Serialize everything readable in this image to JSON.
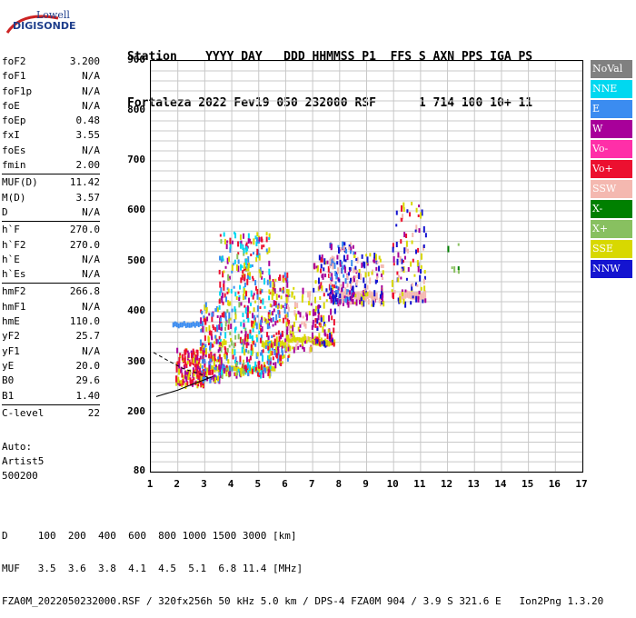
{
  "logo": {
    "line1": "Lowell",
    "line2": "DIGISONDE"
  },
  "header": {
    "line1": "Station    YYYY DAY   DDD HHMMSS P1  FFS S AXN PPS IGA PS",
    "line2": "Fortaleza 2022 Fev19 050 232000 RSF      1 714 100 10+ 11"
  },
  "params": [
    [
      [
        "foF2",
        "3.200"
      ],
      [
        "foF1",
        "N/A"
      ],
      [
        "foF1p",
        "N/A"
      ],
      [
        "foE",
        "N/A"
      ],
      [
        "foEp",
        "0.48"
      ],
      [
        "fxI",
        "3.55"
      ],
      [
        "foEs",
        "N/A"
      ],
      [
        "fmin",
        "2.00"
      ]
    ],
    [
      [
        "MUF(D)",
        "11.42"
      ],
      [
        "M(D)",
        "3.57"
      ],
      [
        "D",
        "N/A"
      ]
    ],
    [
      [
        "h`F",
        "270.0"
      ],
      [
        "h`F2",
        "270.0"
      ],
      [
        "h`E",
        "N/A"
      ],
      [
        "h`Es",
        "N/A"
      ]
    ],
    [
      [
        "hmF2",
        "266.8"
      ],
      [
        "hmF1",
        "N/A"
      ],
      [
        "hmE",
        "110.0"
      ],
      [
        "yF2",
        "25.7"
      ],
      [
        "yF1",
        "N/A"
      ],
      [
        "yE",
        "20.0"
      ],
      [
        "B0",
        "29.6"
      ],
      [
        "B1",
        "1.40"
      ]
    ],
    [
      [
        "C-level",
        "22"
      ]
    ]
  ],
  "auto": {
    "line1": "Auto:",
    "line2": "Artist5",
    "line3": "500200"
  },
  "chart_data": {
    "type": "scatter",
    "x_ticks": [
      "1",
      "2",
      "3",
      "4",
      "5",
      "6",
      "7",
      "8",
      "9",
      "10",
      "11",
      "12",
      "13",
      "14",
      "15",
      "16",
      "17"
    ],
    "y_ticks": [
      "80",
      "200",
      "300",
      "400",
      "500",
      "600",
      "700",
      "800",
      "900"
    ],
    "xlim": [
      1,
      17
    ],
    "ylim": [
      80,
      900
    ],
    "grid": true,
    "legend_position": "right",
    "legend": [
      {
        "name": "NoVal",
        "color": "#808080"
      },
      {
        "name": "NNE",
        "color": "#00d8f0"
      },
      {
        "name": "E",
        "color": "#3b8cf0"
      },
      {
        "name": "W",
        "color": "#a8009a"
      },
      {
        "name": "Vo-",
        "color": "#ff2fa8"
      },
      {
        "name": "Vo+",
        "color": "#ec1030"
      },
      {
        "name": "SSW",
        "color": "#f4b8b0"
      },
      {
        "name": "X-",
        "color": "#008000"
      },
      {
        "name": "X+",
        "color": "#88c060"
      },
      {
        "name": "SSE",
        "color": "#d8d800"
      },
      {
        "name": "NNW",
        "color": "#1414d0"
      }
    ],
    "traces": [
      {
        "style": "solid",
        "points": [
          [
            1.2,
            232
          ],
          [
            2.0,
            245
          ],
          [
            2.6,
            258
          ],
          [
            3.1,
            268
          ],
          [
            3.3,
            272
          ]
        ]
      },
      {
        "style": "dashed",
        "points": [
          [
            1.1,
            320
          ],
          [
            1.6,
            305
          ],
          [
            2.2,
            288
          ],
          [
            2.8,
            278
          ],
          [
            3.2,
            268
          ]
        ]
      }
    ],
    "clusters": [
      {
        "x": [
          1.9,
          3.0
        ],
        "y": [
          260,
          330
        ],
        "series": [
          "SSE",
          "Vo+",
          "Vo+",
          "W"
        ],
        "n": 160
      },
      {
        "x": [
          2.8,
          3.6
        ],
        "y": [
          270,
          420
        ],
        "series": [
          "SSE",
          "Vo+",
          "W",
          "E"
        ],
        "n": 160
      },
      {
        "x": [
          3.5,
          4.6
        ],
        "y": [
          280,
          560
        ],
        "series": [
          "SSE",
          "E",
          "W",
          "NNE",
          "Vo+",
          "X+"
        ],
        "n": 230
      },
      {
        "x": [
          4.4,
          5.4
        ],
        "y": [
          280,
          560
        ],
        "series": [
          "SSE",
          "E",
          "Vo+",
          "W",
          "NNE"
        ],
        "n": 220
      },
      {
        "x": [
          5.3,
          6.1
        ],
        "y": [
          300,
          480
        ],
        "series": [
          "SSE",
          "E",
          "W",
          "Vo+"
        ],
        "n": 140
      },
      {
        "x": [
          6.0,
          7.0
        ],
        "y": [
          330,
          450
        ],
        "series": [
          "SSE",
          "SSW",
          "W"
        ],
        "n": 90
      },
      {
        "x": [
          7.0,
          7.8
        ],
        "y": [
          340,
          520
        ],
        "series": [
          "SSE",
          "NNW",
          "W",
          "Vo+"
        ],
        "n": 110
      },
      {
        "x": [
          7.6,
          8.5
        ],
        "y": [
          420,
          540
        ],
        "series": [
          "NNW",
          "SSW",
          "W",
          "E"
        ],
        "n": 150
      },
      {
        "x": [
          8.5,
          9.6
        ],
        "y": [
          420,
          520
        ],
        "series": [
          "SSW",
          "NNW",
          "SSE",
          "W"
        ],
        "n": 110
      },
      {
        "x": [
          9.9,
          11.2
        ],
        "y": [
          420,
          620
        ],
        "series": [
          "SSE",
          "SSW",
          "W",
          "Vo+",
          "NNW"
        ],
        "n": 100
      },
      {
        "x": [
          11.9,
          12.4
        ],
        "y": [
          480,
          560
        ],
        "series": [
          "X-",
          "X+"
        ],
        "n": 6
      }
    ],
    "bands": [
      {
        "x": [
          1.8,
          2.9
        ],
        "y": [
          370,
          380
        ],
        "series": "E"
      },
      {
        "x": [
          3.0,
          5.6
        ],
        "y": [
          282,
          292
        ],
        "series": "SSE"
      },
      {
        "x": [
          5.1,
          6.0
        ],
        "y": [
          330,
          342
        ],
        "series": "SSE"
      },
      {
        "x": [
          6.0,
          7.1
        ],
        "y": [
          340,
          350
        ],
        "series": "SSE"
      },
      {
        "x": [
          7.1,
          7.8
        ],
        "y": [
          334,
          346
        ],
        "series": "SSE"
      },
      {
        "x": [
          8.0,
          9.4
        ],
        "y": [
          425,
          440
        ],
        "series": "SSW"
      },
      {
        "x": [
          10.2,
          11.2
        ],
        "y": [
          425,
          440
        ],
        "series": "SSW"
      }
    ]
  },
  "footer": {
    "line1": "D     100  200  400  600  800 1000 1500 3000 [km]",
    "line2": "MUF   3.5  3.6  3.8  4.1  4.5  5.1  6.8 11.4 [MHz]",
    "line3": "FZA0M_2022050232000.RSF / 320fx256h 50 kHz 5.0 km / DPS-4 FZA0M 904 / 3.9 S 321.6 E   Ion2Png 1.3.20"
  }
}
